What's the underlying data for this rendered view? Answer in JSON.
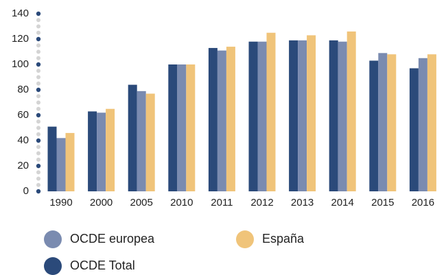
{
  "chart_data": {
    "type": "bar",
    "categories": [
      "1990",
      "2000",
      "2005",
      "2010",
      "2011",
      "2012",
      "2013",
      "2014",
      "2015",
      "2016"
    ],
    "series": [
      {
        "name": "OCDE Total",
        "color": "#2b4a7a",
        "values": [
          51,
          63,
          84,
          100,
          113,
          118,
          119,
          119,
          103,
          97
        ]
      },
      {
        "name": "OCDE europea",
        "color": "#7a8bb0",
        "values": [
          42,
          62,
          79,
          100,
          111,
          118,
          119,
          118,
          109,
          105
        ]
      },
      {
        "name": "España",
        "color": "#f0c47a",
        "values": [
          46,
          65,
          77,
          100,
          114,
          125,
          123,
          126,
          108,
          108
        ]
      }
    ],
    "ylim": [
      0,
      140
    ],
    "yticks": [
      0,
      20,
      40,
      60,
      80,
      100,
      120,
      140
    ]
  }
}
